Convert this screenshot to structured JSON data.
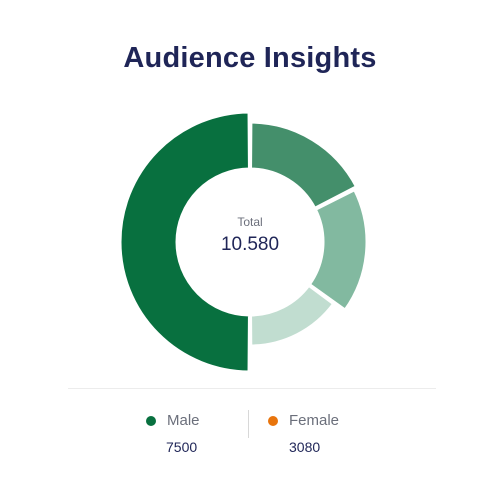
{
  "chart_data": {
    "type": "pie",
    "title": "Audience Insights",
    "center": {
      "label": "Total",
      "value": "10.580"
    },
    "slices": [
      {
        "share": 0.5,
        "color": "#08703f"
      },
      {
        "share": 0.175,
        "color": "#448f6b"
      },
      {
        "share": 0.175,
        "color": "#82b9a0"
      },
      {
        "share": 0.15,
        "color": "#c1ddd0"
      }
    ],
    "legend": [
      {
        "name": "Male",
        "value": "7500",
        "color": "#08703f"
      },
      {
        "name": "Female",
        "value": "3080",
        "color": "#e8740c"
      }
    ]
  }
}
